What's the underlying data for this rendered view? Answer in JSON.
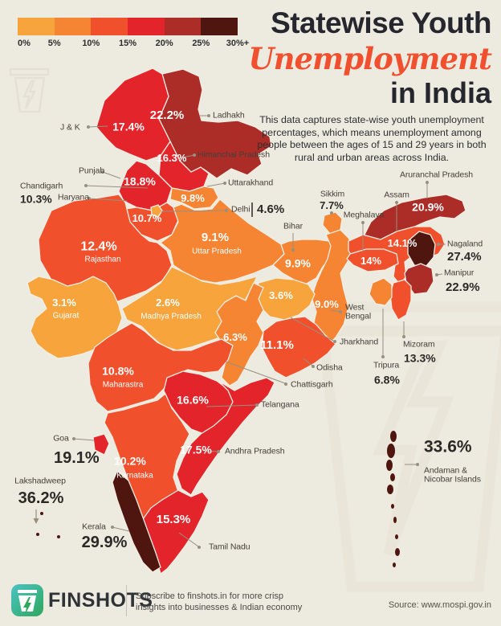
{
  "title": {
    "line1": "Statewise Youth",
    "line2": "Unemployment",
    "line3": "in India"
  },
  "description": "This data captures state-wise youth unemployment percentages, which means unemployment among people between the ages of 15 and 29 years in both rural and urban areas across India.",
  "legend": {
    "tick_labels": [
      "0%",
      "5%",
      "10%",
      "15%",
      "20%",
      "25%",
      "30%+"
    ],
    "band_colors": [
      "#F7A43C",
      "#F58433",
      "#F1502D",
      "#E3242A",
      "#AC2C27",
      "#4F150F"
    ]
  },
  "chart_data": {
    "type": "choropleth_map",
    "title": "Statewise Youth Unemployment in India",
    "unit": "percent, youth unemployment ages 15-29, rural and urban",
    "color_scale": {
      "breaks_percent": [
        0,
        5,
        10,
        15,
        20,
        25,
        30
      ],
      "colors": [
        "#F7A43C",
        "#F58433",
        "#F1502D",
        "#E3242A",
        "#AC2C27",
        "#4F150F"
      ]
    },
    "source": "www.mospi.gov.in",
    "states": [
      {
        "id": "ladakh",
        "name": "Ladhakh",
        "value": 22.2,
        "display": "22.2%"
      },
      {
        "id": "jk",
        "name": "J & K",
        "value": 17.4,
        "display": "17.4%"
      },
      {
        "id": "himachal",
        "name": "Himanchal Pradesh",
        "value": 16.3,
        "display": "16.3%"
      },
      {
        "id": "punjab",
        "name": "Punjab",
        "value": 18.8,
        "display": "18.8%"
      },
      {
        "id": "chandigarh",
        "name": "Chandigarh",
        "value": 10.3,
        "display": "10.3%"
      },
      {
        "id": "haryana",
        "name": "Haryana",
        "value": 10.7,
        "display": "10.7%"
      },
      {
        "id": "uttarakhand",
        "name": "Uttarakhand",
        "value": 9.8,
        "display": "9.8%"
      },
      {
        "id": "delhi",
        "name": "Delhi",
        "value": 4.6,
        "display": "4.6%"
      },
      {
        "id": "rajasthan",
        "name": "Rajasthan",
        "value": 12.4,
        "display": "12.4%"
      },
      {
        "id": "up",
        "name": "Uttar Pradesh",
        "value": 9.1,
        "display": "9.1%"
      },
      {
        "id": "bihar",
        "name": "Bihar",
        "value": 9.9,
        "display": "9.9%"
      },
      {
        "id": "sikkim",
        "name": "Sikkim",
        "value": 7.7,
        "display": "7.7%"
      },
      {
        "id": "meghalaya",
        "name": "Meghalaya",
        "value": 14,
        "display": "14%"
      },
      {
        "id": "assam",
        "name": "Assam",
        "value": 14.1,
        "display": "14.1%"
      },
      {
        "id": "arunachal",
        "name": "Aruranchal Pradesh",
        "value": 20.9,
        "display": "20.9%"
      },
      {
        "id": "nagaland",
        "name": "Nagaland",
        "value": 27.4,
        "display": "27.4%"
      },
      {
        "id": "manipur",
        "name": "Manipur",
        "value": 22.9,
        "display": "22.9%"
      },
      {
        "id": "mizoram",
        "name": "Mizoram",
        "value": 13.3,
        "display": "13.3%"
      },
      {
        "id": "tripura",
        "name": "Tripura",
        "value": 6.8,
        "display": "6.8%"
      },
      {
        "id": "wb",
        "name": "West Bengal",
        "value": 9.0,
        "display": "9.0%"
      },
      {
        "id": "jharkhand",
        "name": "Jharkhand",
        "value": 3.6,
        "display": "3.6%"
      },
      {
        "id": "gujarat",
        "name": "Gujarat",
        "value": 3.1,
        "display": "3.1%"
      },
      {
        "id": "mp",
        "name": "Madhya Pradesh",
        "value": 2.6,
        "display": "2.6%"
      },
      {
        "id": "chattisgarh",
        "name": "Chattisgarh",
        "value": 6.3,
        "display": "6.3%"
      },
      {
        "id": "odisha",
        "name": "Odisha",
        "value": 11.1,
        "display": "11.1%"
      },
      {
        "id": "maharashtra",
        "name": "Maharastra",
        "value": 10.8,
        "display": "10.8%"
      },
      {
        "id": "telangana",
        "name": "Telangana",
        "value": 16.6,
        "display": "16.6%"
      },
      {
        "id": "andhra",
        "name": "Andhra Pradesh",
        "value": 17.5,
        "display": "17.5%"
      },
      {
        "id": "karnataka",
        "name": "Karnataka",
        "value": 10.2,
        "display": "10.2%"
      },
      {
        "id": "goa",
        "name": "Goa",
        "value": 19.1,
        "display": "19.1%"
      },
      {
        "id": "kerala",
        "name": "Kerala",
        "value": 29.9,
        "display": "29.9%"
      },
      {
        "id": "tamilnadu",
        "name": "Tamil Nadu",
        "value": 15.3,
        "display": "15.3%"
      },
      {
        "id": "lakshadweep",
        "name": "Lakshadweep",
        "value": 36.2,
        "display": "36.2%"
      },
      {
        "id": "andaman",
        "name": "Andaman & Nicobar Islands",
        "value": 33.6,
        "display": "33.6%"
      }
    ]
  },
  "footer": {
    "brand": "FINSHOTS",
    "subscribe_line1": "Subscribe to finshots.in for more crisp",
    "subscribe_line2": "insights into businesses & Indian economy",
    "source": "Source: www.mospi.gov.in"
  }
}
